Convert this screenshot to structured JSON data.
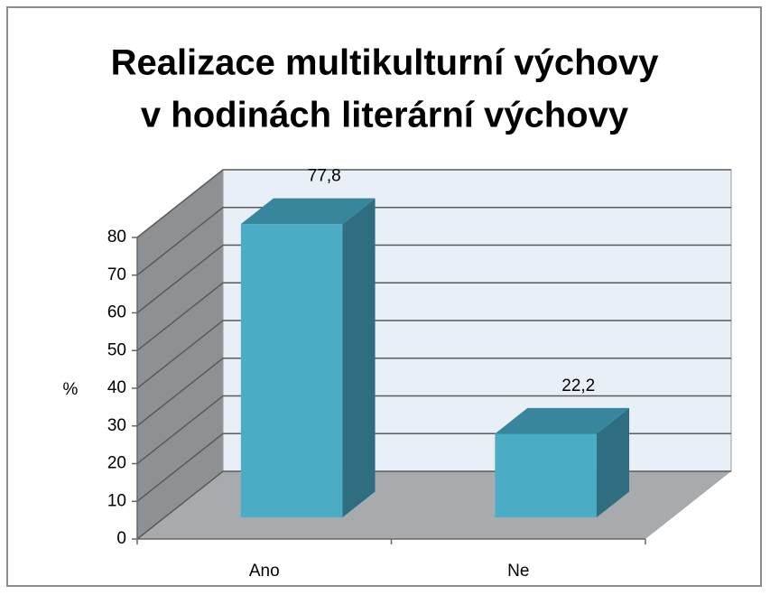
{
  "chart_data": {
    "type": "bar3d",
    "title": [
      "Realizace multikulturní výchovy",
      "v hodinách literární výchovy"
    ],
    "y_label": "%",
    "categories": [
      "Ano",
      "Ne"
    ],
    "values": [
      77.8,
      22.2
    ],
    "value_labels": [
      "77,8",
      "22,2"
    ],
    "color": "#4bacc6",
    "ylim": [
      0,
      80
    ],
    "yticks": [
      0,
      10,
      20,
      30,
      40,
      50,
      60,
      70,
      80
    ],
    "grid": true
  }
}
